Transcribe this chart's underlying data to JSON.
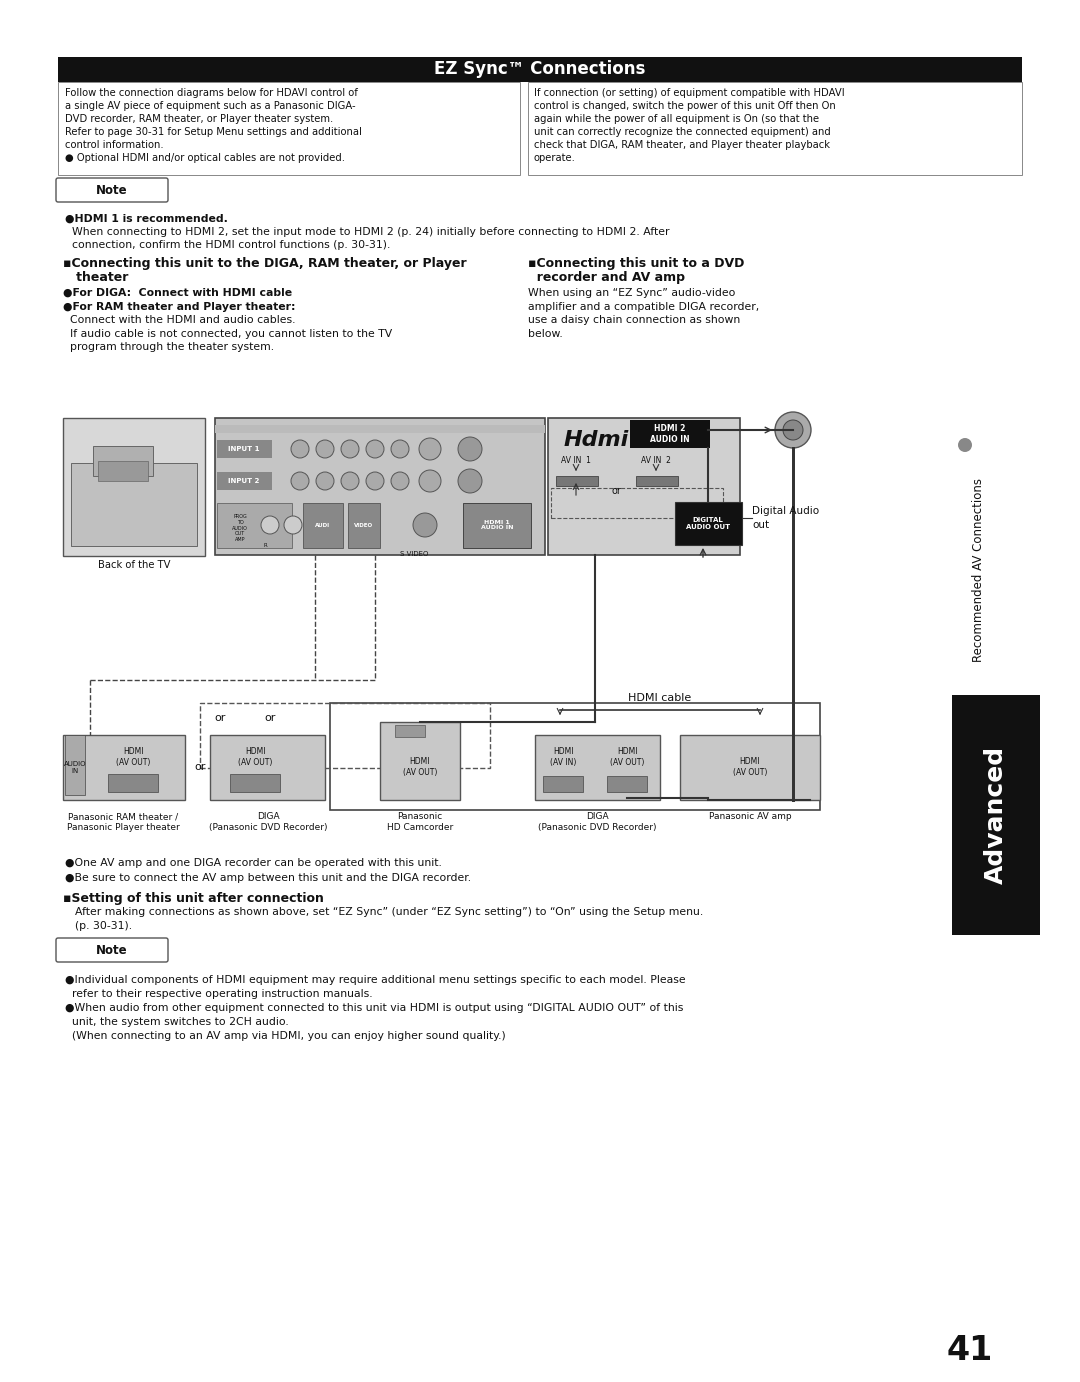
{
  "bg_color": "#ffffff",
  "title": "EZ Sync™ Connections",
  "title_bg": "#111111",
  "title_color": "#ffffff",
  "left_info_line1": "Follow the connection diagrams below for HDAVI control of",
  "left_info_line2": "a single AV piece of equipment such as a Panasonic DIGA-",
  "left_info_line3": "DVD recorder, RAM theater, or Player theater system.",
  "left_info_line4": "Refer to page 30-31 for Setup Menu settings and additional",
  "left_info_line5": "control information.",
  "left_info_line6": "● Optional HDMI and/or optical cables are not provided.",
  "right_info_line1": "If connection (or setting) of equipment compatible with HDAVI",
  "right_info_line2": "control is changed, switch the power of this unit Off then On",
  "right_info_line3": "again while the power of all equipment is On (so that the",
  "right_info_line4": "unit can correctly recognize the connected equipment) and",
  "right_info_line5": "check that DIGA, RAM theater, and Player theater playback",
  "right_info_line6": "operate.",
  "note1_text": "●HDMI 1 is recommended.",
  "note1_text2": "  When connecting to HDMI 2, set the input mode to HDMI 2 (p. 24) initially before connecting to HDMI 2. After",
  "note1_text3": "  connection, confirm the HDMI control functions (p. 30-31).",
  "sec_left_title1": "▪Connecting this unit to the DIGA, RAM theater, or Player",
  "sec_left_title2": "   theater",
  "sec_left_b1": "●For DIGA:  Connect with HDMI cable",
  "sec_left_b2": "●For RAM theater and Player theater:",
  "sec_left_b3": "  Connect with the HDMI and audio cables.",
  "sec_left_b4": "  If audio cable is not connected, you cannot listen to the TV",
  "sec_left_b5": "  program through the theater system.",
  "sec_right_title1": "▪Connecting this unit to a DVD",
  "sec_right_title2": "  recorder and AV amp",
  "sec_right_b1": "When using an “EZ Sync” audio-video",
  "sec_right_b2": "amplifier and a compatible DIGA recorder,",
  "sec_right_b3": "use a daisy chain connection as shown",
  "sec_right_b4": "below.",
  "sidebar_text": "● Recommended AV Connections",
  "advanced_text": "Advanced",
  "page_number": "41",
  "bottom_note1": "●One AV amp and one DIGA recorder can be operated with this unit.",
  "bottom_note2": "●Be sure to connect the AV amp between this unit and the DIGA recorder.",
  "setting_title": "▪Setting of this unit after connection",
  "setting_body1": "After making connections as shown above, set “EZ Sync” (under “EZ Sync setting”) to “On” using the Setup menu.",
  "setting_body2": "(p. 30-31).",
  "final1": "●Individual components of HDMI equipment may require additional menu settings specific to each model. Please",
  "final2": "  refer to their respective operating instruction manuals.",
  "final3": "●When audio from other equipment connected to this unit via HDMI is output using “DIGITAL AUDIO OUT” of this",
  "final4": "  unit, the system switches to 2CH audio.",
  "final5": "  (When connecting to an AV amp via HDMI, you can enjoy higher sound quality.)"
}
